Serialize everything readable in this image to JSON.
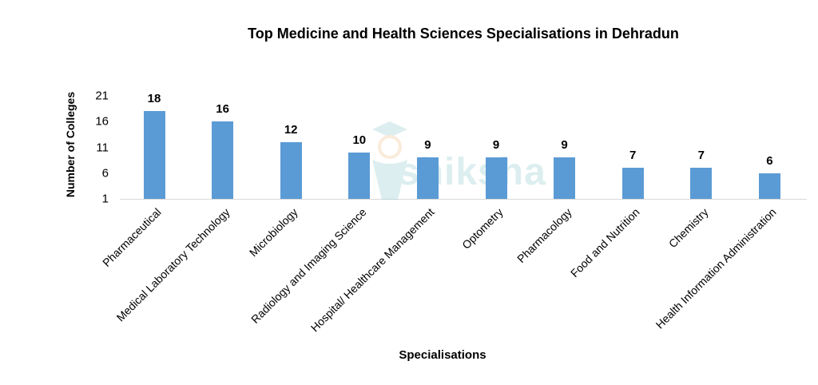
{
  "chart_data": {
    "type": "bar",
    "title": "Top Medicine and Health Sciences Specialisations in Dehradun",
    "xlabel": "Specialisations",
    "ylabel": "Number of Colleges",
    "categories": [
      "Pharmaceutical",
      "Medical Laboratory Technology",
      "Microbiology",
      "Radiology and Imaging Science",
      "Hospital/ Healthcare Management",
      "Optometry",
      "Pharmacology",
      "Food and Nutrition",
      "Chemistry",
      "Health Information Administration"
    ],
    "values": [
      18,
      16,
      12,
      10,
      9,
      9,
      9,
      7,
      7,
      6
    ],
    "yticks": [
      "1",
      "6",
      "11",
      "16",
      "21"
    ],
    "ylim": [
      1,
      21
    ],
    "grid": false,
    "legend": null,
    "bar_color": "#5b9bd5",
    "data_labels": true
  },
  "watermark": {
    "text": "shiksha"
  }
}
